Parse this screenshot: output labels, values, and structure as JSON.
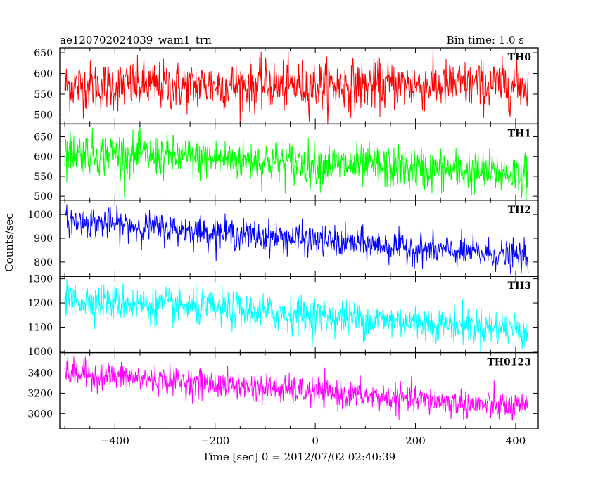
{
  "header": {
    "title": "ae120702024039_wam1_trn",
    "bin_time": "Bin time: 1.0 s"
  },
  "chart_data": {
    "type": "line",
    "ylabel": "Counts/sec",
    "xlabel": "Time [sec] 0 = 2012/07/02 02:40:39",
    "xlim": [
      -510,
      445
    ],
    "x_ticks": [
      -400,
      -200,
      0,
      200,
      400
    ],
    "x_range_data": [
      -500,
      425
    ],
    "panels": [
      {
        "name": "TH0",
        "color": "#ff0000",
        "ylim": [
          478,
          662
        ],
        "yticks": [
          500,
          550,
          600,
          650
        ],
        "trend": {
          "x": [
            -500,
            425
          ],
          "y": [
            570,
            572
          ]
        },
        "noise_sd": 30
      },
      {
        "name": "TH1",
        "color": "#00ff00",
        "ylim": [
          490,
          682
        ],
        "yticks": [
          500,
          550,
          600,
          650
        ],
        "trend": {
          "x": [
            -500,
            425
          ],
          "y": [
            612,
            555
          ]
        },
        "noise_sd": 27
      },
      {
        "name": "TH2",
        "color": "#0000ff",
        "ylim": [
          740,
          1060
        ],
        "yticks": [
          800,
          900,
          1000
        ],
        "trend": {
          "x": [
            -500,
            425
          ],
          "y": [
            975,
            820
          ]
        },
        "noise_sd": 32
      },
      {
        "name": "TH3",
        "color": "#00ffff",
        "ylim": [
          995,
          1310
        ],
        "yticks": [
          1000,
          1100,
          1200,
          1300
        ],
        "trend": {
          "x": [
            -500,
            425
          ],
          "y": [
            1215,
            1090
          ]
        },
        "noise_sd": 38
      },
      {
        "name": "TH0123",
        "color": "#ff00ff",
        "ylim": [
          2850,
          3600
        ],
        "yticks": [
          3000,
          3200,
          3400
        ],
        "trend": {
          "x": [
            -500,
            425
          ],
          "y": [
            3400,
            3050
          ]
        },
        "noise_sd": 70
      }
    ]
  }
}
